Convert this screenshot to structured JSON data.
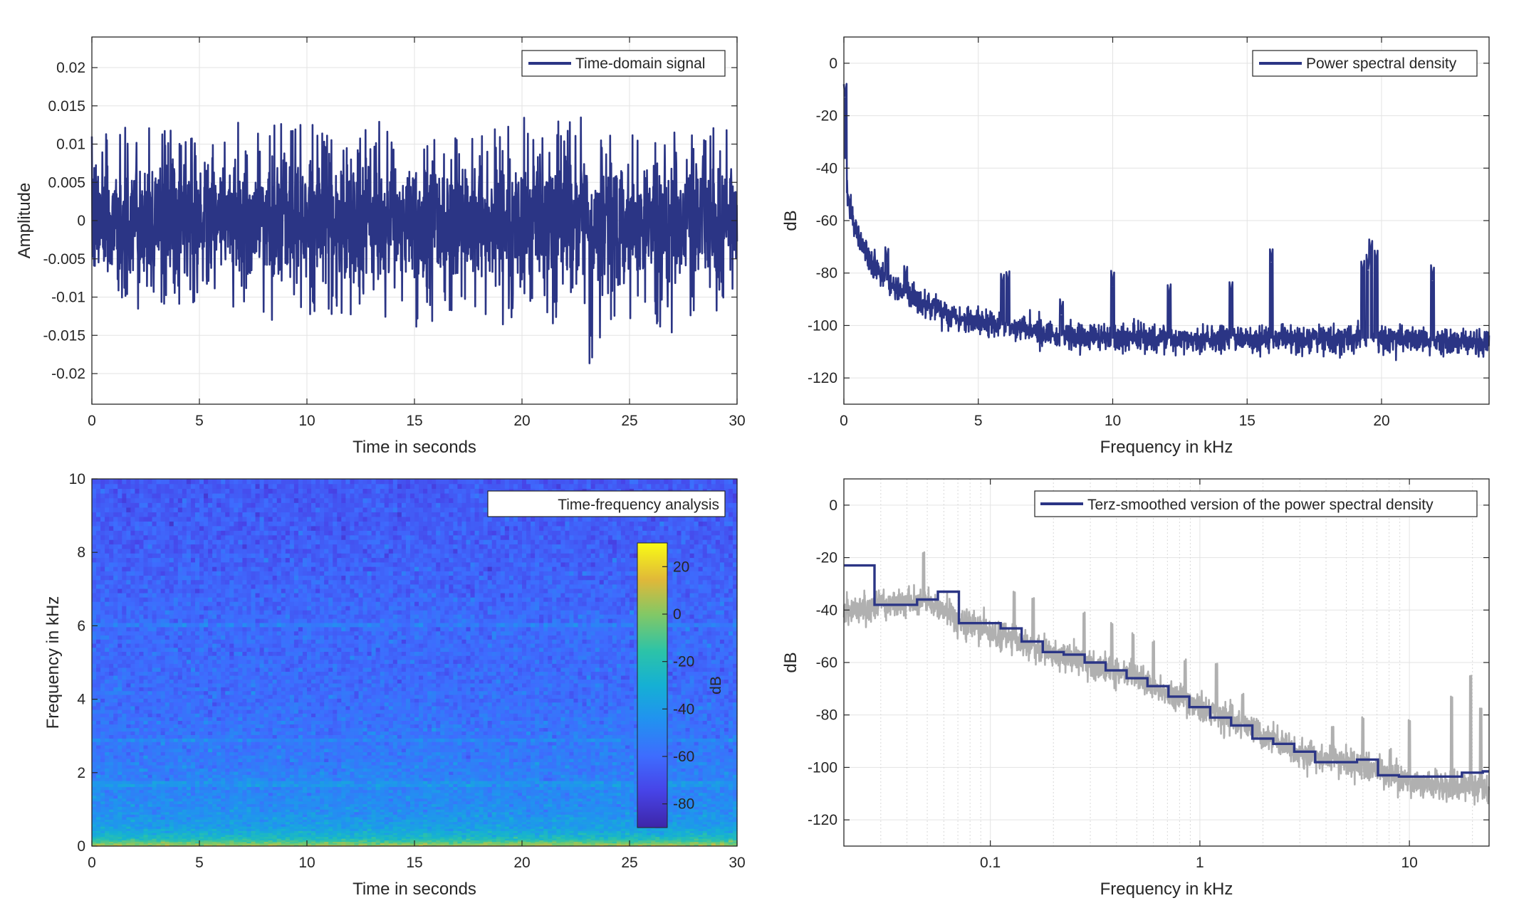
{
  "chart_data": [
    {
      "type": "line",
      "panel": "top-left",
      "xlabel": "Time in seconds",
      "ylabel": "Amplitude",
      "xlim": [
        0,
        30
      ],
      "ylim": [
        -0.024,
        0.024
      ],
      "xticks": [
        0,
        5,
        10,
        15,
        20,
        25,
        30
      ],
      "xtick_labels": [
        "0",
        "5",
        "10",
        "15",
        "20",
        "25",
        "30"
      ],
      "yticks": [
        -0.02,
        -0.015,
        -0.01,
        -0.005,
        0,
        0.005,
        0.01,
        0.015,
        0.02
      ],
      "ytick_labels": [
        "-0.02",
        "-0.015",
        "-0.01",
        "-0.005",
        "0",
        "0.005",
        "0.01",
        "0.015",
        "0.02"
      ],
      "grid": true,
      "legend_position": "top-right",
      "series": [
        {
          "name": "Time-domain signal",
          "color": "#2b3585",
          "envelope_x": [
            0,
            1.5,
            3,
            4.5,
            6,
            7.5,
            9,
            10.5,
            12,
            13.5,
            15,
            16.5,
            18,
            19.5,
            21,
            22.5,
            23,
            24,
            25.5,
            27,
            28.5,
            30
          ],
          "envelope_upper": [
            0.011,
            0.0125,
            0.012,
            0.012,
            0.012,
            0.014,
            0.0125,
            0.0125,
            0.012,
            0.013,
            0.013,
            0.0125,
            0.014,
            0.0145,
            0.0125,
            0.0135,
            0.0178,
            0.0125,
            0.0125,
            0.012,
            0.0125,
            0.0115
          ],
          "envelope_lower": [
            -0.011,
            -0.0115,
            -0.0125,
            -0.011,
            -0.0125,
            -0.0155,
            -0.013,
            -0.012,
            -0.0125,
            -0.0125,
            -0.0145,
            -0.012,
            -0.0125,
            -0.014,
            -0.013,
            -0.015,
            -0.0198,
            -0.0135,
            -0.0125,
            -0.015,
            -0.0125,
            -0.0105
          ]
        }
      ]
    },
    {
      "type": "line",
      "panel": "top-right",
      "xlabel": "Frequency in kHz",
      "ylabel": "dB",
      "xlim": [
        0,
        24
      ],
      "ylim": [
        -130,
        10
      ],
      "xticks": [
        0,
        5,
        10,
        15,
        20
      ],
      "xtick_labels": [
        "0",
        "5",
        "10",
        "15",
        "20"
      ],
      "yticks": [
        -120,
        -100,
        -80,
        -60,
        -40,
        -20,
        0
      ],
      "ytick_labels": [
        "-120",
        "-100",
        "-80",
        "-60",
        "-40",
        "-20",
        "0"
      ],
      "grid": true,
      "legend_position": "top-right",
      "series": [
        {
          "name": "Power spectral density",
          "color": "#2b3585",
          "floor_x": [
            0,
            0.1,
            0.3,
            0.6,
            1,
            1.5,
            2,
            3,
            4,
            5,
            6,
            7,
            8,
            10,
            12,
            15,
            18,
            20,
            22,
            24
          ],
          "floor_y": [
            -25,
            -48,
            -58,
            -68,
            -76,
            -82,
            -86,
            -92,
            -96,
            -99,
            -100,
            -102,
            -104,
            -105,
            -105,
            -105,
            -105,
            -105,
            -106,
            -107
          ],
          "peaks": [
            {
              "x": 0.05,
              "y": -13
            },
            {
              "x": 1.6,
              "y": -76
            },
            {
              "x": 2.3,
              "y": -83
            },
            {
              "x": 5.9,
              "y": -86
            },
            {
              "x": 6.1,
              "y": -85
            },
            {
              "x": 8.1,
              "y": -96
            },
            {
              "x": 10.0,
              "y": -85
            },
            {
              "x": 12.1,
              "y": -90
            },
            {
              "x": 14.4,
              "y": -89
            },
            {
              "x": 15.9,
              "y": -76
            },
            {
              "x": 19.3,
              "y": -81
            },
            {
              "x": 19.5,
              "y": -79
            },
            {
              "x": 19.6,
              "y": -73
            },
            {
              "x": 19.8,
              "y": -77
            },
            {
              "x": 21.9,
              "y": -83
            }
          ]
        }
      ]
    },
    {
      "type": "heatmap",
      "panel": "bottom-left",
      "xlabel": "Time in seconds",
      "ylabel": "Frequency in kHz",
      "xlim": [
        0,
        30
      ],
      "ylim": [
        0,
        10
      ],
      "xticks": [
        0,
        5,
        10,
        15,
        20,
        25,
        30
      ],
      "xtick_labels": [
        "0",
        "5",
        "10",
        "15",
        "20",
        "25",
        "30"
      ],
      "yticks": [
        0,
        2,
        4,
        6,
        8,
        10
      ],
      "ytick_labels": [
        "0",
        "2",
        "4",
        "6",
        "8",
        "10"
      ],
      "colorbar": {
        "label": "dB",
        "range": [
          -90,
          30
        ],
        "ticks": [
          -80,
          -60,
          -40,
          -20,
          0,
          20
        ],
        "tick_labels": [
          "-80",
          "-60",
          "-40",
          "-20",
          "0",
          "20"
        ]
      },
      "legend_position": "top-right",
      "legend_text": "Time-frequency analysis",
      "power_profile_khz": [
        0,
        0.1,
        0.2,
        0.5,
        1,
        2,
        3,
        4,
        5,
        6,
        7,
        8,
        9,
        10
      ],
      "power_profile_db": [
        10,
        -5,
        -22,
        -38,
        -46,
        -52,
        -56,
        -59,
        -61,
        -60,
        -63,
        -65,
        -66,
        -67
      ],
      "bands_khz": [
        1.7,
        2.9,
        6.0
      ]
    },
    {
      "type": "line",
      "panel": "bottom-right",
      "xlabel": "Frequency in kHz",
      "ylabel": "dB",
      "xscale": "log",
      "xlim": [
        0.02,
        24
      ],
      "ylim": [
        -130,
        10
      ],
      "xticks": [
        0.1,
        1,
        10
      ],
      "xtick_labels": [
        "0.1",
        "1",
        "10"
      ],
      "yticks": [
        -120,
        -100,
        -80,
        -60,
        -40,
        -20,
        0
      ],
      "ytick_labels": [
        "-120",
        "-100",
        "-80",
        "-60",
        "-40",
        "-20",
        "0"
      ],
      "grid": true,
      "legend_position": "top-right",
      "series": [
        {
          "name": "",
          "color": "#b0b0b0",
          "floor_x": [
            0.02,
            0.03,
            0.05,
            0.07,
            0.1,
            0.15,
            0.2,
            0.3,
            0.5,
            0.7,
            1,
            1.5,
            2,
            3,
            5,
            7,
            10,
            15,
            20,
            24
          ],
          "floor_y": [
            -41,
            -38,
            -37,
            -44,
            -49,
            -53,
            -57,
            -61,
            -66,
            -72,
            -77,
            -82,
            -88,
            -95,
            -98,
            -101,
            -105,
            -107,
            -107,
            -109
          ],
          "peaks": [
            {
              "x": 0.048,
              "y": -21
            },
            {
              "x": 0.13,
              "y": -36
            },
            {
              "x": 0.16,
              "y": -39
            },
            {
              "x": 0.28,
              "y": -44
            },
            {
              "x": 0.38,
              "y": -48
            },
            {
              "x": 0.48,
              "y": -52
            },
            {
              "x": 0.6,
              "y": -55
            },
            {
              "x": 0.85,
              "y": -62
            },
            {
              "x": 1.2,
              "y": -64
            },
            {
              "x": 1.6,
              "y": -75
            },
            {
              "x": 4.3,
              "y": -88
            },
            {
              "x": 6.0,
              "y": -84
            },
            {
              "x": 8.1,
              "y": -96
            },
            {
              "x": 10.0,
              "y": -85
            },
            {
              "x": 15.9,
              "y": -76
            },
            {
              "x": 19.6,
              "y": -68
            },
            {
              "x": 21.9,
              "y": -81
            }
          ]
        },
        {
          "name": "Terz-smoothed version of the power spectral density",
          "color": "#2b3585",
          "step_edges": [
            0.02,
            0.028,
            0.0355,
            0.0447,
            0.0562,
            0.0708,
            0.0891,
            0.112,
            0.141,
            0.178,
            0.224,
            0.282,
            0.355,
            0.447,
            0.562,
            0.708,
            0.891,
            1.12,
            1.41,
            1.78,
            2.24,
            2.82,
            3.55,
            4.47,
            5.62,
            7.08,
            8.91,
            11.2,
            14.1,
            17.8,
            22.4,
            24
          ],
          "step_values": [
            -23,
            -38,
            -38,
            -36,
            -33,
            -45,
            -45,
            -47,
            -52,
            -56,
            -57,
            -60,
            -63,
            -66,
            -69,
            -73,
            -77,
            -81,
            -84,
            -89,
            -91,
            -94,
            -98,
            -98,
            -97,
            -103,
            -103.5,
            -103.5,
            -103.5,
            -102,
            -101.5
          ]
        }
      ]
    }
  ]
}
